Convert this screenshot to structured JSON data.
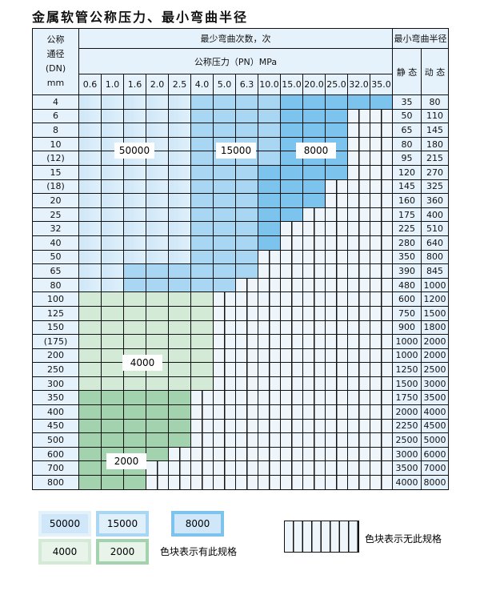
{
  "title": "金属软管公称压力、最小弯曲半径",
  "header": {
    "dn": "公称\n通径\n(DN)\nmm",
    "dn_lines": [
      "公称",
      "通径",
      "(DN)",
      "mm"
    ],
    "cycles": "最少弯曲次数，次",
    "pressure": "公称压力（PN）MPa",
    "radius": "最小弯曲半径",
    "static": "静 态",
    "dynamic": "动 态"
  },
  "pressures": [
    "0.6",
    "1.0",
    "1.6",
    "2.0",
    "2.5",
    "4.0",
    "5.0",
    "6.3",
    "10.0",
    "15.0",
    "20.0",
    "25.0",
    "32.0",
    "35.0"
  ],
  "rows": [
    {
      "dn": "4",
      "cells": "AAAAABBBBCCCCC",
      "static": "35",
      "dynamic": "80"
    },
    {
      "dn": "6",
      "cells": "AAAAABBBBCCCXX",
      "static": "50",
      "dynamic": "110"
    },
    {
      "dn": "8",
      "cells": "AAAAABBBBCCCXX",
      "static": "65",
      "dynamic": "145"
    },
    {
      "dn": "10",
      "cells": "AAAAABBBBCCCXX",
      "static": "80",
      "dynamic": "180"
    },
    {
      "dn": "(12)",
      "cells": "AAAAABBBBCCCXX",
      "static": "95",
      "dynamic": "215"
    },
    {
      "dn": "15",
      "cells": "AAAAABBBCCCCXX",
      "static": "120",
      "dynamic": "270"
    },
    {
      "dn": "(18)",
      "cells": "AAAAABBBCCCXXX",
      "static": "145",
      "dynamic": "325"
    },
    {
      "dn": "20",
      "cells": "AAAAABBBCCCXXX",
      "static": "160",
      "dynamic": "360"
    },
    {
      "dn": "25",
      "cells": "AAAAABBBCCXXXX",
      "static": "175",
      "dynamic": "400"
    },
    {
      "dn": "32",
      "cells": "AAAAABBBCXXXXX",
      "static": "225",
      "dynamic": "510"
    },
    {
      "dn": "40",
      "cells": "AAAAABBBCXXXXX",
      "static": "280",
      "dynamic": "640"
    },
    {
      "dn": "50",
      "cells": "AAAAABBBXXXXXX",
      "static": "350",
      "dynamic": "800"
    },
    {
      "dn": "65",
      "cells": "AABBBBBBXXXXXX",
      "static": "390",
      "dynamic": "845"
    },
    {
      "dn": "80",
      "cells": "AABBBBBXXXXXXX",
      "static": "480",
      "dynamic": "1000"
    },
    {
      "dn": "100",
      "cells": "GGGGGGXXXXXXXX",
      "static": "600",
      "dynamic": "1200"
    },
    {
      "dn": "125",
      "cells": "GGGGGGXXXXXXXX",
      "static": "750",
      "dynamic": "1500"
    },
    {
      "dn": "150",
      "cells": "GGGGGGXXXXXXXX",
      "static": "900",
      "dynamic": "1800"
    },
    {
      "dn": "(175)",
      "cells": "GGGGGGXXXXXXXX",
      "static": "1000",
      "dynamic": "2000"
    },
    {
      "dn": "200",
      "cells": "GGGGGGXXXXXXXX",
      "static": "1000",
      "dynamic": "2000"
    },
    {
      "dn": "250",
      "cells": "GGGGGGXXXXXXXX",
      "static": "1250",
      "dynamic": "2500"
    },
    {
      "dn": "300",
      "cells": "GGGGGGXXXXXXXX",
      "static": "1500",
      "dynamic": "3000"
    },
    {
      "dn": "350",
      "cells": "HHHHHXXXXXXXXX",
      "static": "1750",
      "dynamic": "3500"
    },
    {
      "dn": "400",
      "cells": "HHHHHXXXXXXXXX",
      "static": "2000",
      "dynamic": "4000"
    },
    {
      "dn": "450",
      "cells": "HHHHHXXXXXXXXX",
      "static": "2250",
      "dynamic": "4500"
    },
    {
      "dn": "500",
      "cells": "HHHHHXXXXXXXXX",
      "static": "2500",
      "dynamic": "5000"
    },
    {
      "dn": "600",
      "cells": "HHHHXXXXXXXXXX",
      "static": "3000",
      "dynamic": "6000"
    },
    {
      "dn": "700",
      "cells": "HHHXXXXXXXXXXX",
      "static": "3500",
      "dynamic": "7000"
    },
    {
      "dn": "800",
      "cells": "HHHXXXXXXXXXXX",
      "static": "4000",
      "dynamic": "8000"
    }
  ],
  "region_labels": {
    "A": "50000",
    "B": "15000",
    "C": "8000",
    "G": "4000",
    "H": "2000"
  },
  "colors": {
    "A": "#cfe7f8",
    "B": "#a9d6f3",
    "C": "#7cc4ee",
    "G": "#d3ead6",
    "H": "#a3d3ae"
  },
  "legend": {
    "has_spec": "色块表示有此规格",
    "no_spec": "色块表示无此规格"
  }
}
